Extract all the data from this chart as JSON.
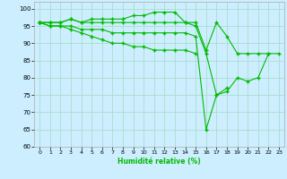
{
  "xlabel": "Humidité relative (%)",
  "background_color": "#cceeff",
  "grid_color": "#aaddcc",
  "line_color": "#00bb00",
  "xlim": [
    -0.5,
    23.5
  ],
  "ylim": [
    60,
    102
  ],
  "yticks": [
    60,
    65,
    70,
    75,
    80,
    85,
    90,
    95,
    100
  ],
  "xticks": [
    0,
    1,
    2,
    3,
    4,
    5,
    6,
    7,
    8,
    9,
    10,
    11,
    12,
    13,
    14,
    15,
    16,
    17,
    18,
    19,
    20,
    21,
    22,
    23
  ],
  "series": [
    [
      96,
      96,
      96,
      97,
      96,
      97,
      97,
      97,
      97,
      98,
      98,
      99,
      99,
      99,
      96,
      96,
      88,
      96,
      92,
      87,
      87,
      87,
      87,
      null
    ],
    [
      96,
      96,
      96,
      97,
      96,
      96,
      96,
      96,
      96,
      96,
      96,
      96,
      96,
      96,
      96,
      95,
      87,
      75,
      76,
      80,
      79,
      80,
      87,
      87
    ],
    [
      96,
      95,
      95,
      95,
      94,
      94,
      94,
      93,
      93,
      93,
      93,
      93,
      93,
      93,
      93,
      92,
      65,
      75,
      77,
      null,
      null,
      null,
      null,
      null
    ],
    [
      96,
      95,
      95,
      94,
      93,
      92,
      91,
      90,
      90,
      89,
      89,
      88,
      88,
      88,
      88,
      87,
      null,
      null,
      null,
      null,
      null,
      null,
      null,
      null
    ]
  ]
}
